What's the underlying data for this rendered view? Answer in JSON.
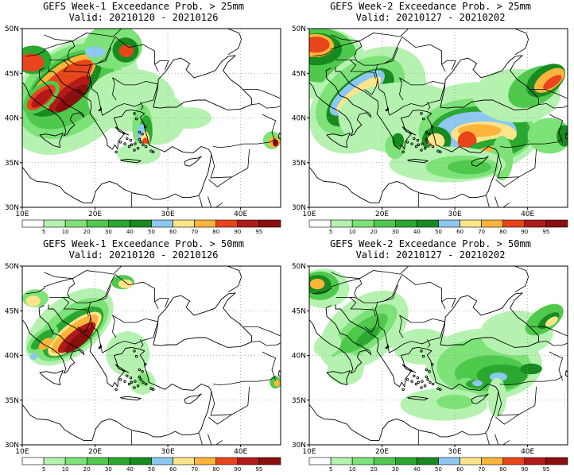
{
  "colors": {
    "c5": "#ffffff",
    "c10": "#b5f2b0",
    "c20": "#7de278",
    "c30": "#4fc94c",
    "c40": "#2aa830",
    "c50": "#178a20",
    "c60": "#8cc8f0",
    "c70": "#ffe58a",
    "c80": "#fdb43a",
    "c90": "#e8451b",
    "c95": "#b21a1a",
    "c100": "#8b0f0f",
    "coast": "#000000",
    "grid": "#999999"
  },
  "colorbar": {
    "labels": [
      "5",
      "10",
      "20",
      "30",
      "40",
      "50",
      "60",
      "70",
      "80",
      "90",
      "95"
    ],
    "bins": [
      "c5",
      "c10",
      "c20",
      "c30",
      "c40",
      "c50",
      "c60",
      "c70",
      "c80",
      "c90",
      "c95",
      "c100"
    ]
  },
  "axes": {
    "lat_labels": [
      "50N",
      "45N",
      "40N",
      "35N",
      "30N"
    ],
    "lon_labels": [
      "10E",
      "20E",
      "30E",
      "40E"
    ]
  },
  "panels": [
    {
      "title1": "GEFS Week-1 Exceedance Prob. > 25mm",
      "title2": "Valid: 20210120 - 20210126",
      "week": "Week-1",
      "threshold": "25mm",
      "valid_start": "20210120",
      "valid_end": "20210126"
    },
    {
      "title1": "GEFS Week-2 Exceedance Prob. > 25mm",
      "title2": "Valid: 20210127 - 20210202",
      "week": "Week-2",
      "threshold": "25mm",
      "valid_start": "20210127",
      "valid_end": "20210202"
    },
    {
      "title1": "GEFS Week-1 Exceedance Prob. > 50mm",
      "title2": "Valid: 20210120 - 20210126",
      "week": "Week-1",
      "threshold": "50mm",
      "valid_start": "20210120",
      "valid_end": "20210126"
    },
    {
      "title1": "GEFS Week-2 Exceedance Prob. > 50mm",
      "title2": "Valid: 20210127 - 20210202",
      "week": "Week-2",
      "threshold": "50mm",
      "valid_start": "20210127",
      "valid_end": "20210202"
    }
  ]
}
